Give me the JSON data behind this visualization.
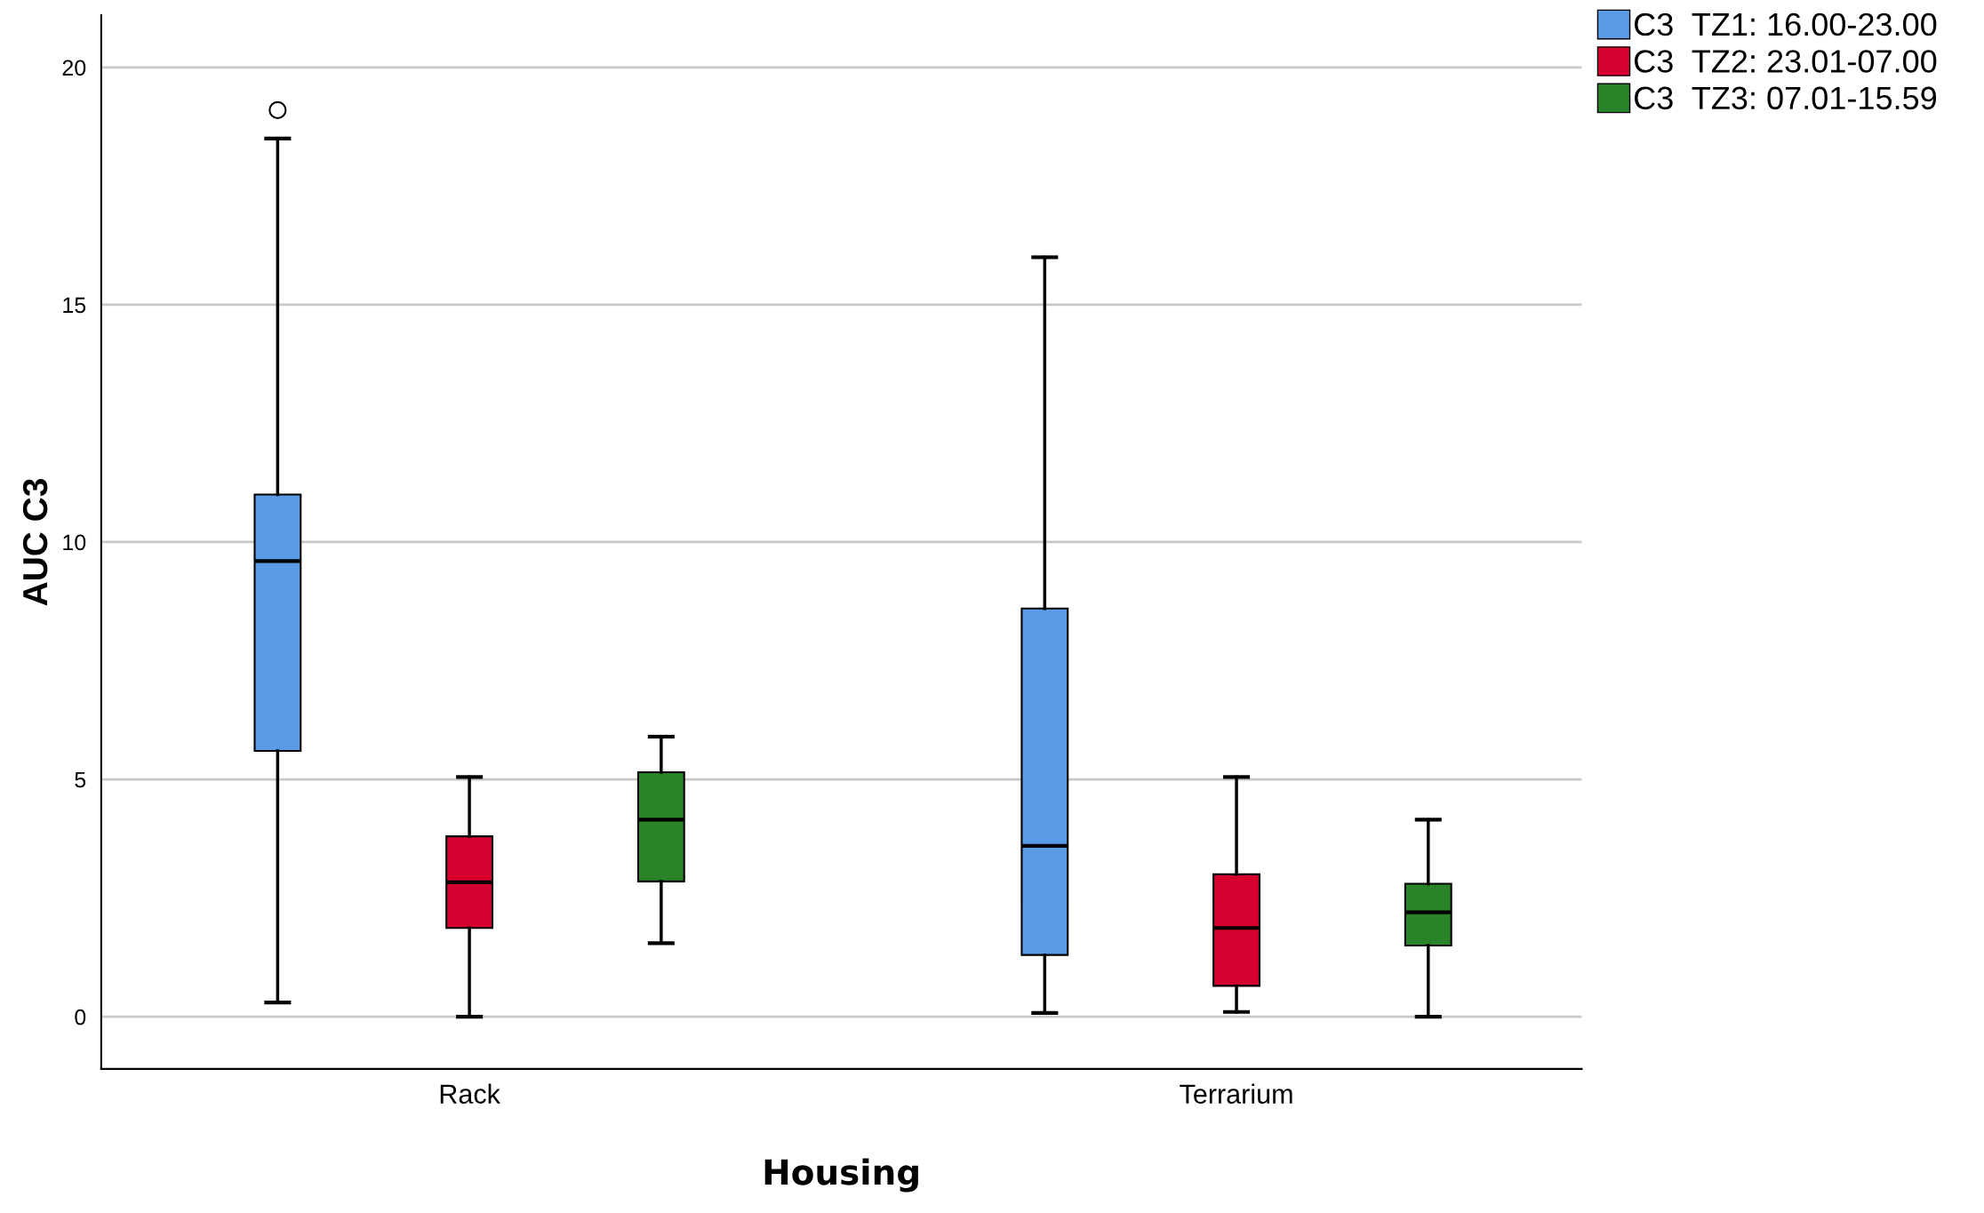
{
  "chart_data": {
    "type": "box",
    "xlabel": "Housing",
    "ylabel": "AUC C3",
    "categories": [
      "Rack",
      "Terrarium"
    ],
    "series": [
      {
        "name": "C3  TZ1: 16.00-23.00",
        "color": "#5b9be6",
        "boxes": [
          {
            "low": 0.3,
            "q1": 5.6,
            "median": 9.6,
            "q3": 11.0,
            "high": 18.5,
            "outliers": [
              19.1
            ]
          },
          {
            "low": 0.08,
            "q1": 1.3,
            "median": 3.6,
            "q3": 8.6,
            "high": 16.0
          }
        ]
      },
      {
        "name": "C3  TZ2: 23.01-07.00",
        "color": "#d5002e",
        "boxes": [
          {
            "low": 0,
            "q1": 1.87,
            "median": 2.83,
            "q3": 3.8,
            "high": 5.05
          },
          {
            "low": 0.1,
            "q1": 0.65,
            "median": 1.87,
            "q3": 3.0,
            "high": 5.05
          }
        ]
      },
      {
        "name": "C3  TZ3: 07.01-15.59",
        "color": "#2a8229",
        "boxes": [
          {
            "low": 1.55,
            "q1": 2.85,
            "median": 4.15,
            "q3": 5.15,
            "high": 5.9
          },
          {
            "low": 0,
            "q1": 1.5,
            "median": 2.2,
            "q3": 2.8,
            "high": 4.15
          }
        ]
      }
    ],
    "ylim": [
      -1.1,
      21.1
    ],
    "yticks": [
      0,
      5,
      10,
      15,
      20
    ],
    "grid": "y",
    "legend": "top right"
  }
}
